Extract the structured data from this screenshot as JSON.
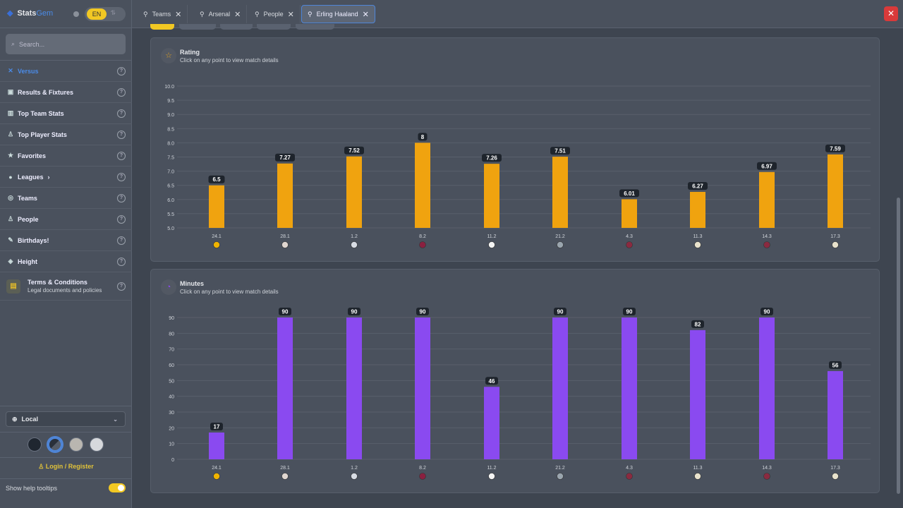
{
  "brand": {
    "name1": "Stats",
    "name2": "Gem",
    "lang": "EN",
    "alt_lang": "⥮"
  },
  "search": {
    "placeholder": "Search..."
  },
  "nav": [
    {
      "label": "Versus",
      "icon": "swords-icon",
      "glyph": "✕",
      "active": true
    },
    {
      "label": "Results & Fixtures",
      "icon": "calendar-icon",
      "glyph": "▣"
    },
    {
      "label": "Top Team Stats",
      "icon": "bar-chart-icon",
      "glyph": "▥"
    },
    {
      "label": "Top Player Stats",
      "icon": "user-icon",
      "glyph": "♙"
    },
    {
      "label": "Favorites",
      "icon": "star-icon",
      "glyph": "★"
    },
    {
      "label": "Leagues",
      "icon": "globe-icon",
      "glyph": "●",
      "chevron": "›"
    },
    {
      "label": "Teams",
      "icon": "team-icon",
      "glyph": "◎"
    },
    {
      "label": "People",
      "icon": "person-icon",
      "glyph": "♙"
    },
    {
      "label": "Birthdays!",
      "icon": "party-icon",
      "glyph": "✎"
    },
    {
      "label": "Height",
      "icon": "ruler-icon",
      "glyph": "◈"
    }
  ],
  "terms": {
    "label": "Terms & Conditions",
    "sub": "Legal documents and policies"
  },
  "timezone": {
    "value": "Local"
  },
  "themes": [
    "#1f2630",
    "#3c4350",
    "#b9b6b0",
    "#d6d8dc"
  ],
  "login": "Login / Register",
  "tooltips": {
    "label": "Show help tooltips",
    "on": true
  },
  "tabs": [
    {
      "label": "Teams"
    },
    {
      "label": "Arsenal"
    },
    {
      "label": "People"
    },
    {
      "label": "Erling Haaland",
      "active": true
    }
  ],
  "chart_data": [
    {
      "type": "bar",
      "title": "Rating",
      "subtitle": "Click on any point to view match details",
      "color": "#f0a30f",
      "categories": [
        "24.1",
        "28.1",
        "1.2",
        "8.2",
        "11.2",
        "21.2",
        "4.3",
        "11.3",
        "14.3",
        "17.3"
      ],
      "values": [
        6.5,
        7.27,
        7.52,
        8,
        7.26,
        7.51,
        6.01,
        6.27,
        6.97,
        7.59
      ],
      "labels": [
        "6.5",
        "7.27",
        "7.52",
        "8",
        "7.26",
        "7.51",
        "6.01",
        "6.27",
        "6.97",
        "7.59"
      ],
      "ylim": [
        5,
        10
      ],
      "yticks": [
        "5.0",
        "5.5",
        "6.0",
        "6.5",
        "7.0",
        "7.5",
        "8.0",
        "8.5",
        "9.0",
        "9.5",
        "10.0"
      ],
      "grid": true
    },
    {
      "type": "bar",
      "title": "Minutes",
      "subtitle": "Click on any point to view match details",
      "color": "#8a4af0",
      "categories": [
        "24.1",
        "28.1",
        "1.2",
        "8.2",
        "11.2",
        "21.2",
        "4.3",
        "11.3",
        "14.3",
        "17.3"
      ],
      "values": [
        17,
        90,
        90,
        90,
        46,
        90,
        90,
        82,
        90,
        56
      ],
      "labels": [
        "17",
        "90",
        "90",
        "90",
        "46",
        "90",
        "90",
        "82",
        "90",
        "56"
      ],
      "ylim": [
        0,
        90
      ],
      "yticks": [
        "0",
        "10",
        "20",
        "30",
        "40",
        "50",
        "60",
        "70",
        "80",
        "90"
      ],
      "grid": true
    }
  ],
  "opponent_crests": [
    {
      "icon": "wolves-crest-icon",
      "color": "#f0b400"
    },
    {
      "icon": "galatasaray-crest-icon",
      "color": "#e0d6d0"
    },
    {
      "icon": "tottenham-crest-icon",
      "color": "#d8dce4"
    },
    {
      "icon": "burnley-crest-icon",
      "color": "#8a2040"
    },
    {
      "icon": "fulham-crest-icon",
      "color": "#f4f4f4"
    },
    {
      "icon": "newcastle-crest-icon",
      "color": "#9aa5ae"
    },
    {
      "icon": "westham-crest-icon",
      "color": "#8a2a40"
    },
    {
      "icon": "real-madrid-crest-icon",
      "color": "#e8e2cc"
    },
    {
      "icon": "westham-crest-icon",
      "color": "#8a2a40"
    },
    {
      "icon": "real-madrid-crest-icon",
      "color": "#e8e2cc"
    }
  ]
}
